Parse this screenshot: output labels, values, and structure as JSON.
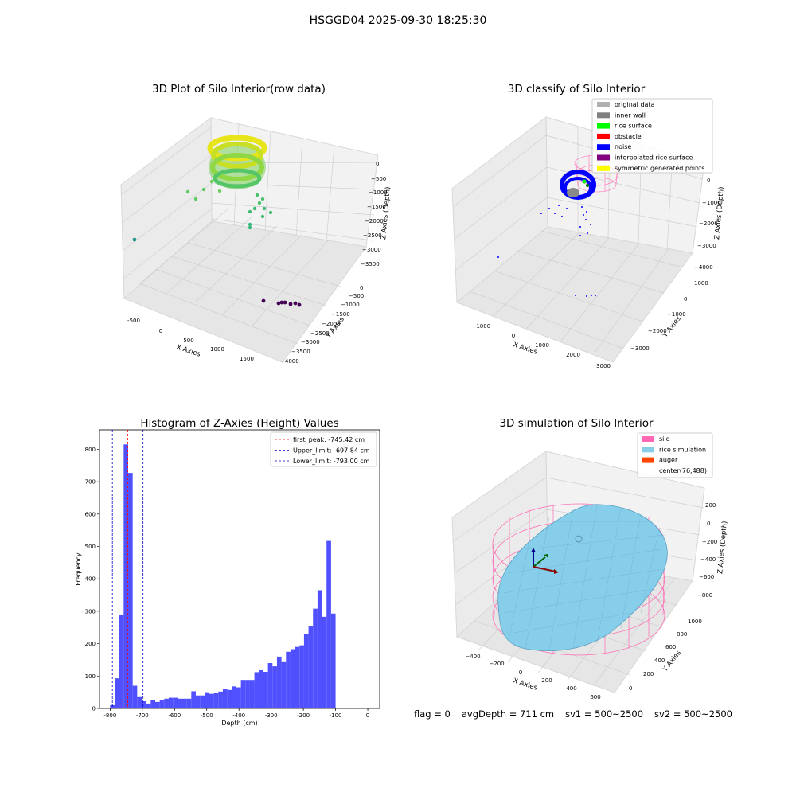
{
  "suptitle": "HSGGD04 2025-09-30 18:25:30",
  "footer": {
    "flag": "flag = 0",
    "avg_depth": "avgDepth = 711 cm",
    "sv1": "sv1 = 500~2500",
    "sv2": "sv2 = 500~2500"
  },
  "colors": {
    "histogram": "#5050ff",
    "first_peak": "#ff0000",
    "limits": "#0000cc",
    "silo": "#ff69b4",
    "rice_simulation": "#87ceeb",
    "auger": "#ff4500",
    "noise": "#0000ff",
    "original_data": "#b0b0b0",
    "inner_wall": "#808080",
    "rice_surface": "#00ff00",
    "obstacle": "#ff0000",
    "interpolated_rice_surface": "#800080",
    "symmetric_generated_points": "#ffff00"
  },
  "chart_data": [
    {
      "type": "scatter",
      "subtype": "3d",
      "title": "3D Plot of Silo Interior(row data)",
      "xlabel": "X Axies",
      "ylabel": "Y Axies",
      "zlabel": "Z Axies (Depth)",
      "xlim": [
        -700,
        1900
      ],
      "ylim": [
        -4100,
        300
      ],
      "zlim": [
        -3700,
        200
      ],
      "xticks": [
        "-500",
        "0",
        "500",
        "1000",
        "1500"
      ],
      "yticks": [
        "0",
        "−500",
        "−1000",
        "−1500",
        "−2000",
        "−2500",
        "−3000",
        "−3500",
        "−4000"
      ],
      "zticks": [
        "0",
        "−500",
        "−1000",
        "−1500",
        "−2000",
        "−2500",
        "−3000",
        "−3500"
      ],
      "colormap": "viridis",
      "clusters": [
        {
          "label": "top ring",
          "x_range": [
            400,
            950
          ],
          "y_range": [
            -700,
            -200
          ],
          "z_range": [
            -800,
            0
          ]
        },
        {
          "label": "scattered points",
          "x_range": [
            300,
            1050
          ],
          "y_range": [
            -1500,
            -400
          ],
          "z_range": [
            -1900,
            -800
          ]
        },
        {
          "label": "far left point",
          "x": -580,
          "y": -1200,
          "z": -2000
        },
        {
          "label": "bottom cluster",
          "x_range": [
            1050,
            1350
          ],
          "y_range": [
            -3700,
            -3300
          ],
          "z_range": [
            -3700,
            -3500
          ]
        }
      ]
    },
    {
      "type": "scatter",
      "subtype": "3d",
      "title": "3D classify of Silo Interior",
      "xlabel": "X Axies",
      "ylabel": "Y Axies",
      "zlabel": "Z Axies (Depth)",
      "xlim": [
        -1400,
        3100
      ],
      "ylim": [
        -3800,
        1200
      ],
      "zlim": [
        -4100,
        200
      ],
      "xticks": [
        "-1000",
        "0",
        "1000",
        "2000",
        "3000"
      ],
      "yticks": [
        "1000",
        "0",
        "−1000",
        "−2000",
        "−3000"
      ],
      "zticks": [
        "0",
        "−1000",
        "−2000",
        "−3000",
        "−4000"
      ],
      "legend": {
        "position": "upper-right",
        "entries": [
          {
            "label": "original data",
            "color": "#b0b0b0"
          },
          {
            "label": "inner wall",
            "color": "#808080"
          },
          {
            "label": "rice surface",
            "color": "#00ff00"
          },
          {
            "label": "obstacle",
            "color": "#ff0000"
          },
          {
            "label": "noise",
            "color": "#0000ff"
          },
          {
            "label": "interpolated rice surface",
            "color": "#800080"
          },
          {
            "label": "symmetric generated points",
            "color": "#ffff00"
          }
        ]
      }
    },
    {
      "type": "bar",
      "subtype": "histogram",
      "title": "Histogram of Z-Axies (Height) Values",
      "xlabel": "Depth (cm)",
      "ylabel": "Frequency",
      "xlim": [
        -833,
        37
      ],
      "ylim": [
        0,
        860
      ],
      "xticks": [
        -800,
        -700,
        -600,
        -500,
        -400,
        -300,
        -200,
        -100,
        0
      ],
      "yticks": [
        0,
        100,
        200,
        300,
        400,
        500,
        600,
        700,
        800
      ],
      "bin_start": -800,
      "bin_width": 14,
      "values": [
        10,
        93,
        290,
        815,
        727,
        70,
        35,
        22,
        15,
        25,
        20,
        25,
        30,
        33,
        33,
        30,
        30,
        30,
        53,
        40,
        40,
        50,
        45,
        48,
        52,
        60,
        57,
        68,
        65,
        88,
        88,
        88,
        112,
        118,
        113,
        140,
        130,
        160,
        143,
        175,
        183,
        190,
        195,
        230,
        253,
        308,
        365,
        283,
        517,
        293
      ],
      "reference_lines": [
        {
          "label": "first_peak: -745.42 cm",
          "x": -745.42,
          "color": "#ff0000"
        },
        {
          "label": "Upper_limit: -697.84 cm",
          "x": -697.84,
          "color": "#0000cc"
        },
        {
          "label": "Lower_limit: -793.00 cm",
          "x": -793.0,
          "color": "#0000cc"
        }
      ],
      "legend": {
        "position": "upper-right"
      }
    },
    {
      "type": "surface",
      "subtype": "3d",
      "title": "3D simulation of Silo Interior",
      "xlabel": "X Axies",
      "ylabel": "Y Axies",
      "zlabel": "Z Axies (Depth)",
      "xlim": [
        -500,
        700
      ],
      "ylim": [
        -150,
        1100
      ],
      "zlim": [
        -900,
        300
      ],
      "xticks": [
        "−400",
        "−200",
        "0",
        "200",
        "400",
        "600"
      ],
      "yticks": [
        "0",
        "200",
        "400",
        "600",
        "800",
        "1000"
      ],
      "zticks": [
        "200",
        "0",
        "−200",
        "−400",
        "−600",
        "−800"
      ],
      "legend": {
        "position": "upper-right",
        "entries": [
          {
            "label": "silo",
            "color": "#ff69b4"
          },
          {
            "label": "rice simulation",
            "color": "#87ceeb"
          },
          {
            "label": "auger",
            "color": "#ff4500"
          },
          {
            "label": "center(76,488)",
            "color": ""
          }
        ]
      }
    }
  ]
}
